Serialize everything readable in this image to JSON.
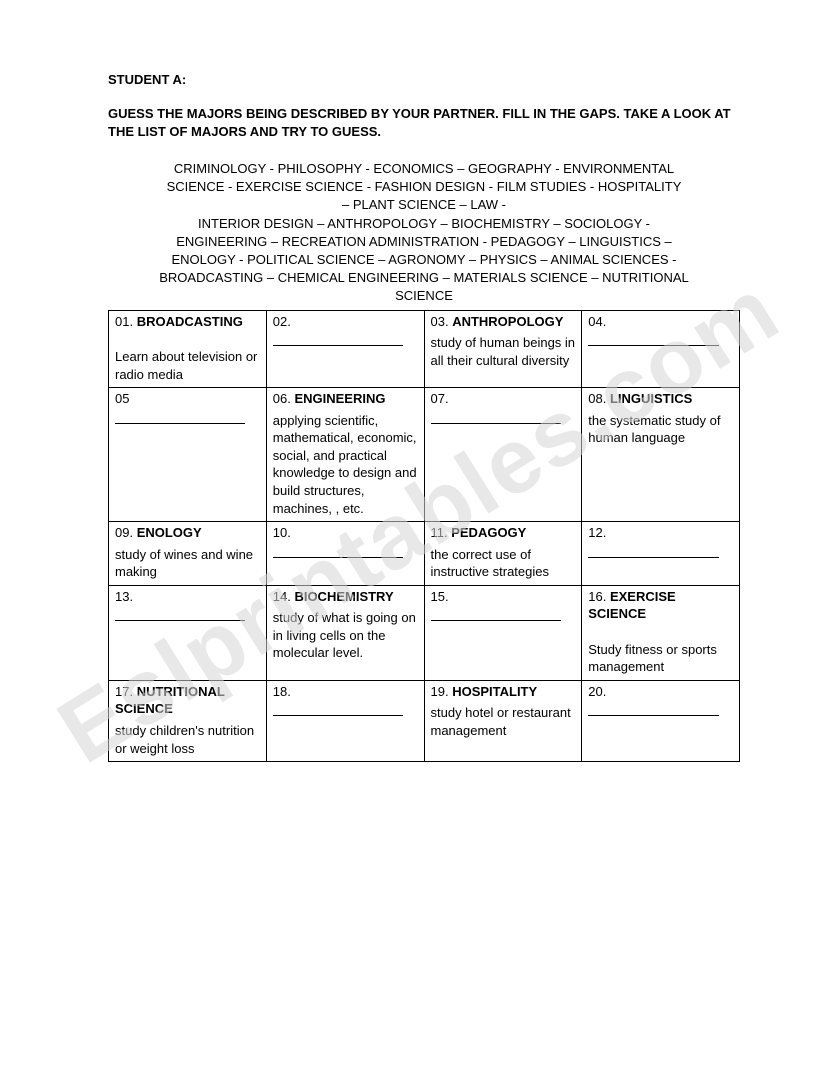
{
  "header": {
    "label": "STUDENT A:",
    "instructions": "GUESS THE MAJORS BEING DESCRIBED BY YOUR PARTNER. FILL IN THE GAPS. TAKE A LOOK AT THE LIST OF MAJORS AND TRY TO GUESS."
  },
  "majors_list": [
    "CRIMINOLOGY  - PHILOSOPHY - ECONOMICS – GEOGRAPHY -  ENVIRONMENTAL",
    "SCIENCE -  EXERCISE SCIENCE -  FASHION DESIGN - FILM STUDIES -  HOSPITALITY",
    "– PLANT SCIENCE – LAW -",
    "INTERIOR DESIGN – ANTHROPOLOGY – BIOCHEMISTRY – SOCIOLOGY -",
    "ENGINEERING – RECREATION ADMINISTRATION - PEDAGOGY – LINGUISTICS –",
    "ENOLOGY -  POLITICAL SCIENCE – AGRONOMY – PHYSICS – ANIMAL SCIENCES -",
    "BROADCASTING – CHEMICAL ENGINEERING – MATERIALS SCIENCE – NUTRITIONAL",
    "SCIENCE"
  ],
  "watermark": "Eslprintables.com",
  "table": {
    "columns": 4,
    "rows": [
      [
        {
          "num": "01.",
          "title": "BROADCASTING",
          "desc": "Learn about television or radio media",
          "blank": false
        },
        {
          "num": "02.",
          "title": "",
          "desc": "",
          "blank": true
        },
        {
          "num": "03.",
          "title": "ANTHROPOLOGY",
          "desc": "study of human beings in all their cultural diversity",
          "blank": false
        },
        {
          "num": "04.",
          "title": "",
          "desc": "",
          "blank": true
        }
      ],
      [
        {
          "num": "05",
          "title": "",
          "desc": "",
          "blank": true
        },
        {
          "num": "06.",
          "title": "ENGINEERING",
          "desc": "applying scientific, mathematical, economic, social, and practical knowledge to design and build structures, machines, , etc.",
          "blank": false
        },
        {
          "num": "07.",
          "title": "",
          "desc": "",
          "blank": true
        },
        {
          "num": "08.",
          "title": "LINGUISTICS",
          "desc": "the systematic study of human language",
          "blank": false
        }
      ],
      [
        {
          "num": "09.",
          "title": "ENOLOGY",
          "desc": "study of wines and wine making",
          "blank": false
        },
        {
          "num": "10.",
          "title": "",
          "desc": "",
          "blank": true
        },
        {
          "num": "11.",
          "title": "PEDAGOGY",
          "desc": "the correct use of instructive strategies",
          "blank": false
        },
        {
          "num": "12.",
          "title": "",
          "desc": "",
          "blank": true
        }
      ],
      [
        {
          "num": "13.",
          "title": "",
          "desc": "",
          "blank": true
        },
        {
          "num": "14.",
          "title": "BIOCHEMISTRY",
          "desc": "study of what is going on in living cells on the molecular level.",
          "blank": false
        },
        {
          "num": "15.",
          "title": "",
          "desc": "",
          "blank": true
        },
        {
          "num": "16.",
          "title": "EXERCISE SCIENCE",
          "desc": "Study fitness or sports management",
          "blank": false
        }
      ],
      [
        {
          "num": "17.",
          "title": "NUTRITIONAL SCIENCE",
          "desc": "study children's nutrition or weight loss",
          "blank": false
        },
        {
          "num": "18.",
          "title": "",
          "desc": "",
          "blank": true
        },
        {
          "num": "19.",
          "title": "HOSPITALITY",
          "desc": "study hotel or restaurant management",
          "blank": false
        },
        {
          "num": "20.",
          "title": "",
          "desc": "",
          "blank": true
        }
      ]
    ],
    "cell_border_color": "#000000",
    "font_size": 13
  }
}
